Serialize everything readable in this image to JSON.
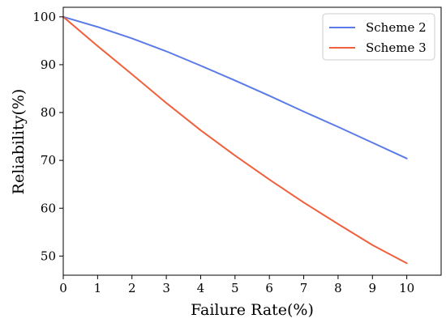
{
  "chart_data": {
    "type": "line",
    "title": "",
    "xlabel": "Failure Rate(%)",
    "ylabel": "Reliability(%)",
    "xlim": [
      0,
      11
    ],
    "ylim": [
      46,
      102
    ],
    "xticks": [
      0,
      1,
      2,
      3,
      4,
      5,
      6,
      7,
      8,
      9,
      10
    ],
    "yticks": [
      50,
      60,
      70,
      80,
      90,
      100
    ],
    "grid": false,
    "legend_position": "top-right",
    "x": [
      0,
      1,
      2,
      3,
      4,
      5,
      6,
      7,
      8,
      9,
      10
    ],
    "series": [
      {
        "name": "Scheme 2",
        "color": "#5b7be8",
        "values": [
          100,
          97.9,
          95.5,
          92.8,
          89.8,
          86.7,
          83.5,
          80.2,
          77.0,
          73.7,
          70.4
        ]
      },
      {
        "name": "Scheme 3",
        "color": "#f0603c",
        "values": [
          100,
          93.9,
          88.0,
          82.0,
          76.3,
          71.0,
          66.0,
          61.2,
          56.7,
          52.3,
          48.5
        ]
      }
    ]
  }
}
